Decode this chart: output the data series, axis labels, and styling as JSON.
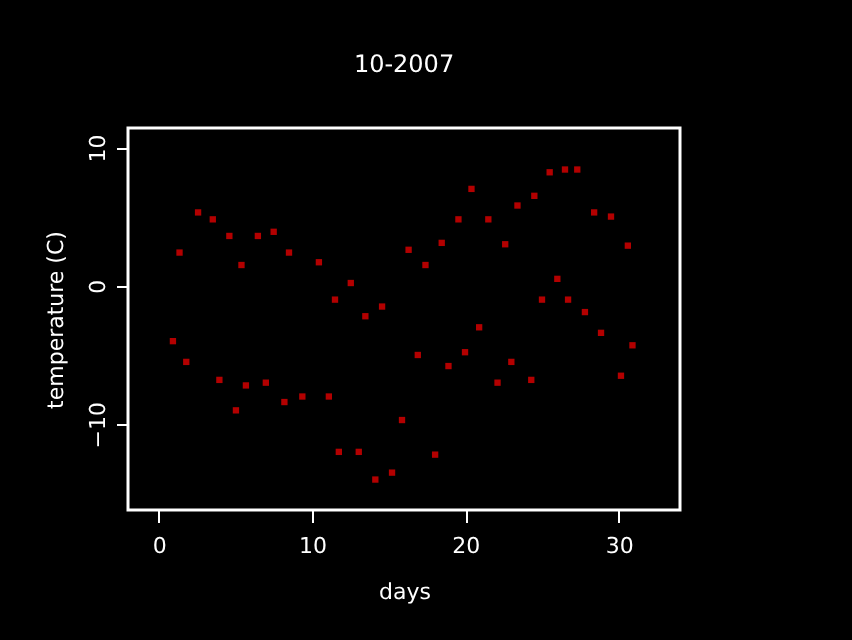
{
  "chart_data": {
    "type": "scatter",
    "title": "10-2007",
    "xlabel": "days",
    "ylabel": "temperature (C)",
    "x": [
      0.93,
      1.36,
      1.8,
      2.57,
      3.53,
      3.96,
      4.61,
      5.04,
      5.4,
      5.69,
      6.47,
      6.99,
      7.5,
      8.2,
      8.5,
      9.37,
      10.45,
      11.1,
      11.5,
      11.75,
      12.53,
      13.05,
      13.48,
      14.13,
      14.57,
      15.22,
      15.87,
      16.3,
      16.9,
      17.4,
      18.03,
      18.46,
      18.9,
      19.55,
      19.98,
      20.4,
      20.9,
      21.5,
      22.1,
      22.6,
      23.0,
      23.4,
      24.3,
      24.5,
      25.0,
      25.5,
      26.0,
      26.5,
      26.7,
      27.3,
      27.8,
      28.4,
      28.85,
      29.5,
      30.15,
      30.6,
      30.9
    ],
    "series": [
      {
        "color": "#ff0000",
        "values": [
          -4,
          2.4,
          -5.5,
          5.3,
          4.8,
          -6.8,
          3.6,
          -9,
          1.5,
          -7.2,
          3.6,
          -7,
          3.9,
          -8.4,
          2.4,
          -8,
          1.7,
          -8,
          -1,
          -12,
          0.2,
          -12,
          -2.2,
          -14,
          -1.5,
          -13.5,
          -9.7,
          2.6,
          -5,
          1.5,
          -12.2,
          3.1,
          -5.8,
          4.8,
          -4.8,
          7,
          -3,
          4.8,
          -7,
          3,
          -5.5,
          5.8,
          -6.8,
          6.5,
          -1,
          8.2,
          0.5,
          8.4,
          -1,
          8.4,
          -1.9,
          5.3,
          -3.4,
          5,
          -6.5,
          2.9,
          -4.3
        ]
      }
    ],
    "xlim": [
      -2,
      34
    ],
    "ylim": [
      -16.2,
      11.4
    ],
    "xticks": [
      0,
      10,
      20,
      30
    ],
    "yticks": [
      -10,
      0,
      10
    ],
    "grid": false,
    "legend": false,
    "marker": "square"
  }
}
